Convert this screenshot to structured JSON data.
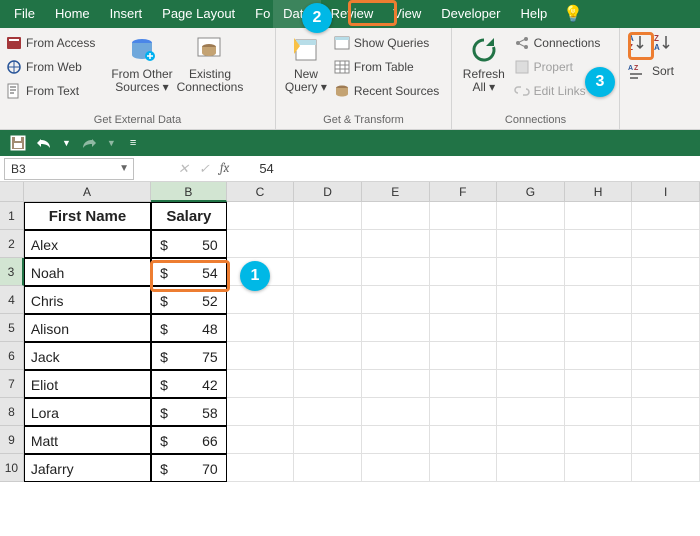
{
  "app": "Excel",
  "tabs": [
    "File",
    "Home",
    "Insert",
    "Page Layout",
    "Formulas",
    "Data",
    "Review",
    "View",
    "Developer",
    "Help"
  ],
  "active_tab": "Data",
  "ribbon": {
    "g1_label": "Get External Data",
    "from_access": "From Access",
    "from_web": "From Web",
    "from_text": "From Text",
    "from_other": "From Other\nSources",
    "existing_conn": "Existing\nConnections",
    "g2_label": "Get & Transform",
    "new_query": "New\nQuery",
    "show_queries": "Show Queries",
    "from_table": "From Table",
    "recent_sources": "Recent Sources",
    "g3_label": "Connections",
    "refresh_all": "Refresh\nAll",
    "connections": "Connections",
    "properties": "Properties",
    "edit_links": "Edit Links",
    "sort_label": "Sort"
  },
  "namebox": "B3",
  "formula_value": "54",
  "columns": [
    "A",
    "B",
    "C",
    "D",
    "E",
    "F",
    "G",
    "H",
    "I"
  ],
  "selected_col": "B",
  "selected_row": 3,
  "table": {
    "headers": [
      "First Name",
      "Salary"
    ],
    "currency": "$",
    "rows": [
      {
        "name": "Alex",
        "salary": 50
      },
      {
        "name": "Noah",
        "salary": 54
      },
      {
        "name": "Chris",
        "salary": 52
      },
      {
        "name": "Alison",
        "salary": 48
      },
      {
        "name": "Jack",
        "salary": 75
      },
      {
        "name": "Eliot",
        "salary": 42
      },
      {
        "name": "Lora",
        "salary": 58
      },
      {
        "name": "Matt",
        "salary": 66
      },
      {
        "name": "Jafarry",
        "salary": 70
      }
    ]
  },
  "callouts": {
    "c1": "1",
    "c2": "2",
    "c3": "3"
  },
  "colors": {
    "excel_green": "#217346",
    "highlight": "#ed7d31",
    "callout": "#00b8e6",
    "ribbon_bg": "#f3f2f1"
  }
}
